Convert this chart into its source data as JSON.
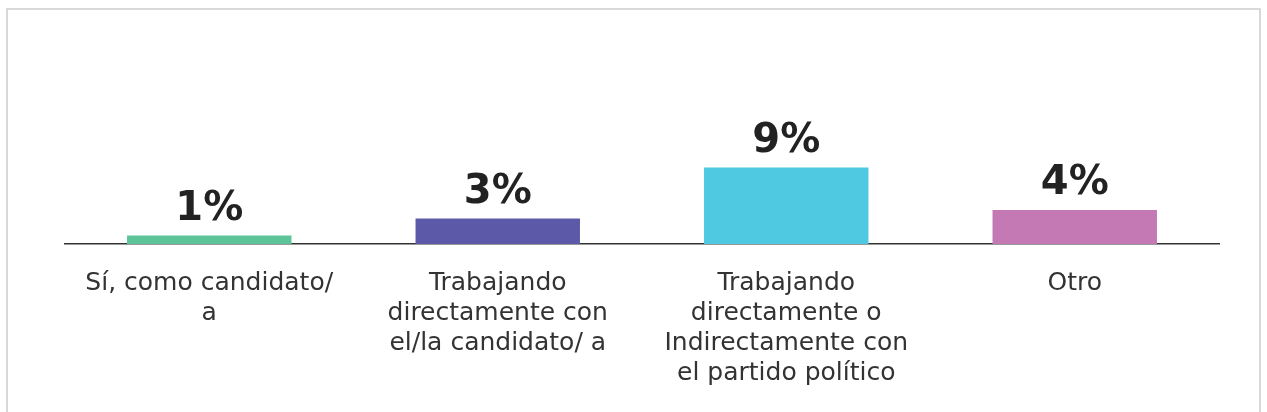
{
  "chart_data": {
    "type": "bar",
    "categories": [
      "Sí, como candidato/ a",
      "Trabajando directamente con el/la candidato/ a",
      "Trabajando directamente o Indirectamente con el partido político",
      "Otro"
    ],
    "values": [
      1,
      3,
      9,
      4
    ],
    "colors": [
      "#5dc49a",
      "#5c5aa8",
      "#4fc8e2",
      "#c479b5"
    ],
    "value_labels": [
      "1%",
      "3%",
      "9%",
      "4%"
    ],
    "grid": false,
    "legend": false
  }
}
